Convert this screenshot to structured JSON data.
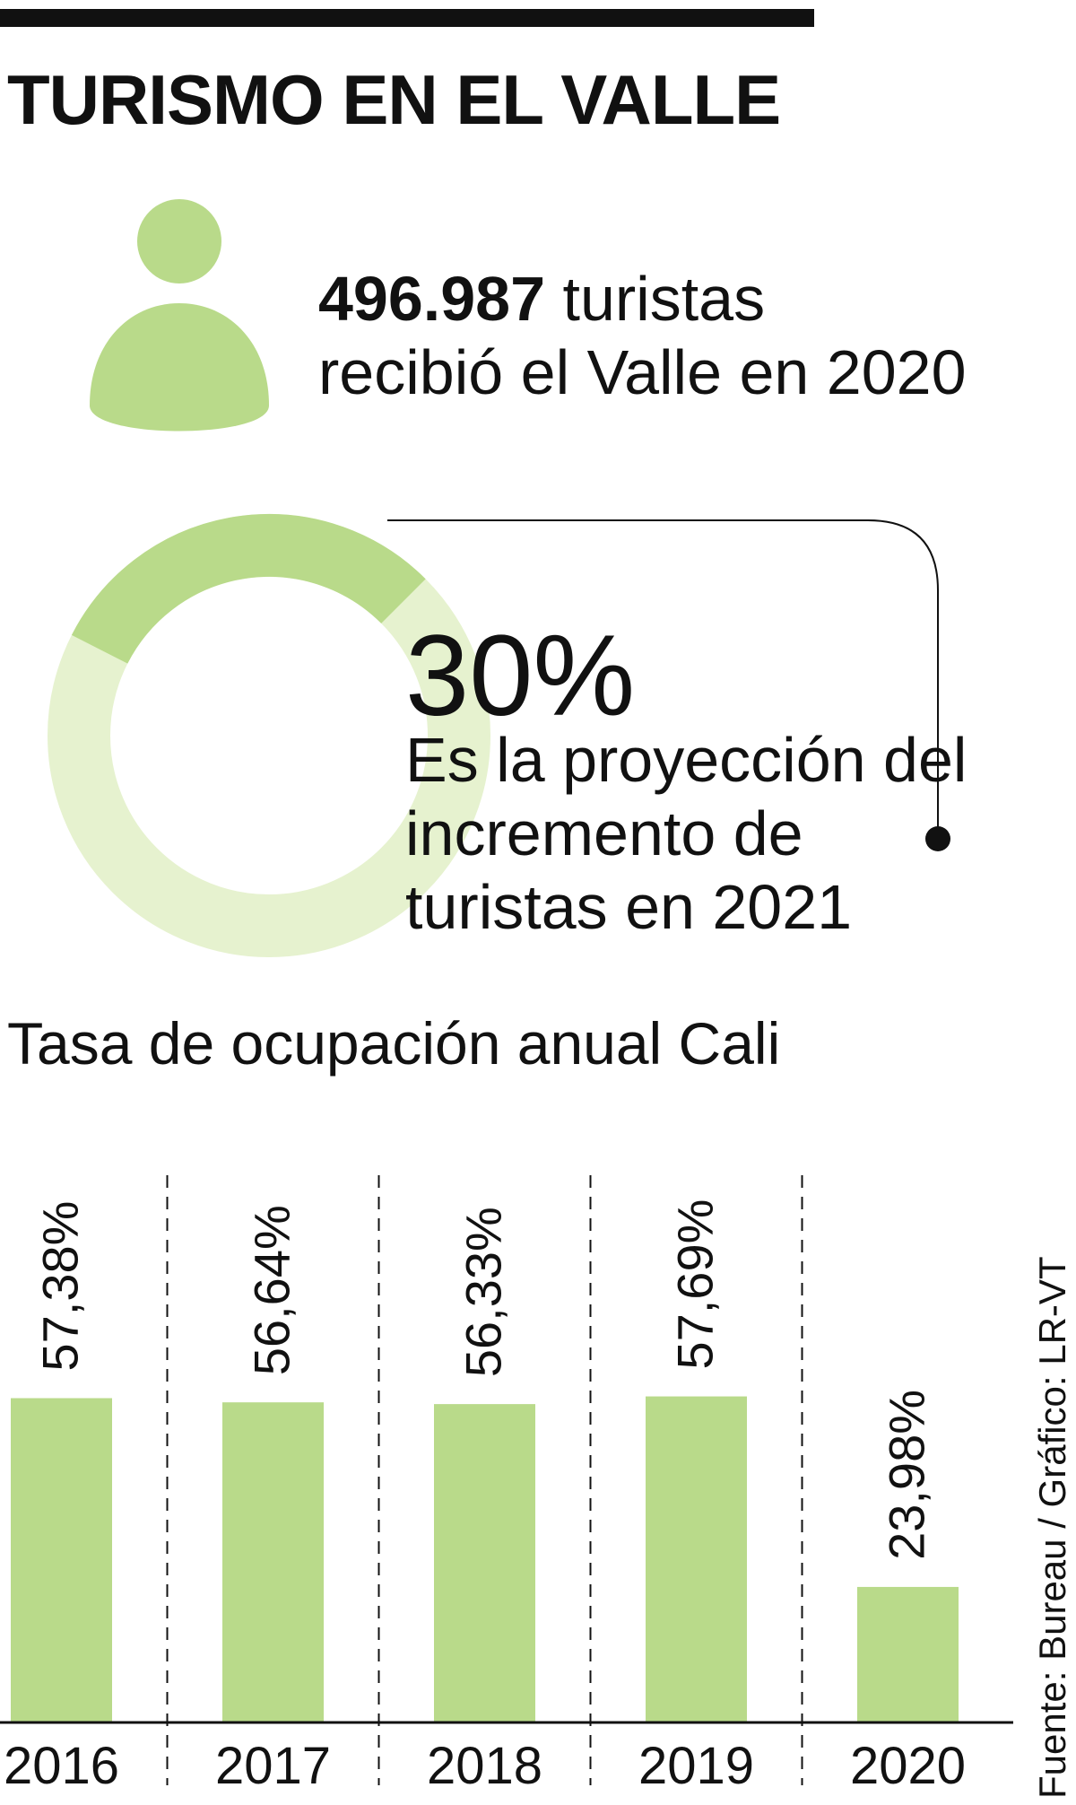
{
  "title": "TURISMO EN EL VALLE",
  "tourists": {
    "number": "496.987",
    "unit_text": " turistas",
    "line2": "recibió el Valle en 2020"
  },
  "projection": {
    "value_text": "30%",
    "value": 30,
    "description": "Es la proyección del incremento de turistas en 2021"
  },
  "colors": {
    "bar": "#b9da8a",
    "donut_highlight": "#b9da8a",
    "donut_base": "#e6f2cf",
    "text": "#111111"
  },
  "icons": {
    "person": "person-icon",
    "leader_dot": "dot-icon"
  },
  "chart_data": {
    "type": "bar",
    "title": "Tasa de ocupación anual Cali",
    "categories": [
      "2016",
      "2017",
      "2018",
      "2019",
      "2020"
    ],
    "values": [
      57.38,
      56.64,
      56.33,
      57.69,
      23.98
    ],
    "value_labels": [
      "57,38%",
      "56,64%",
      "56,33%",
      "57,69%",
      "23,98%"
    ],
    "xlabel": "",
    "ylabel": "",
    "ylim": [
      0,
      100
    ],
    "grid": false
  },
  "source": "Fuente: Bureau / Gráfico: LR-VT"
}
